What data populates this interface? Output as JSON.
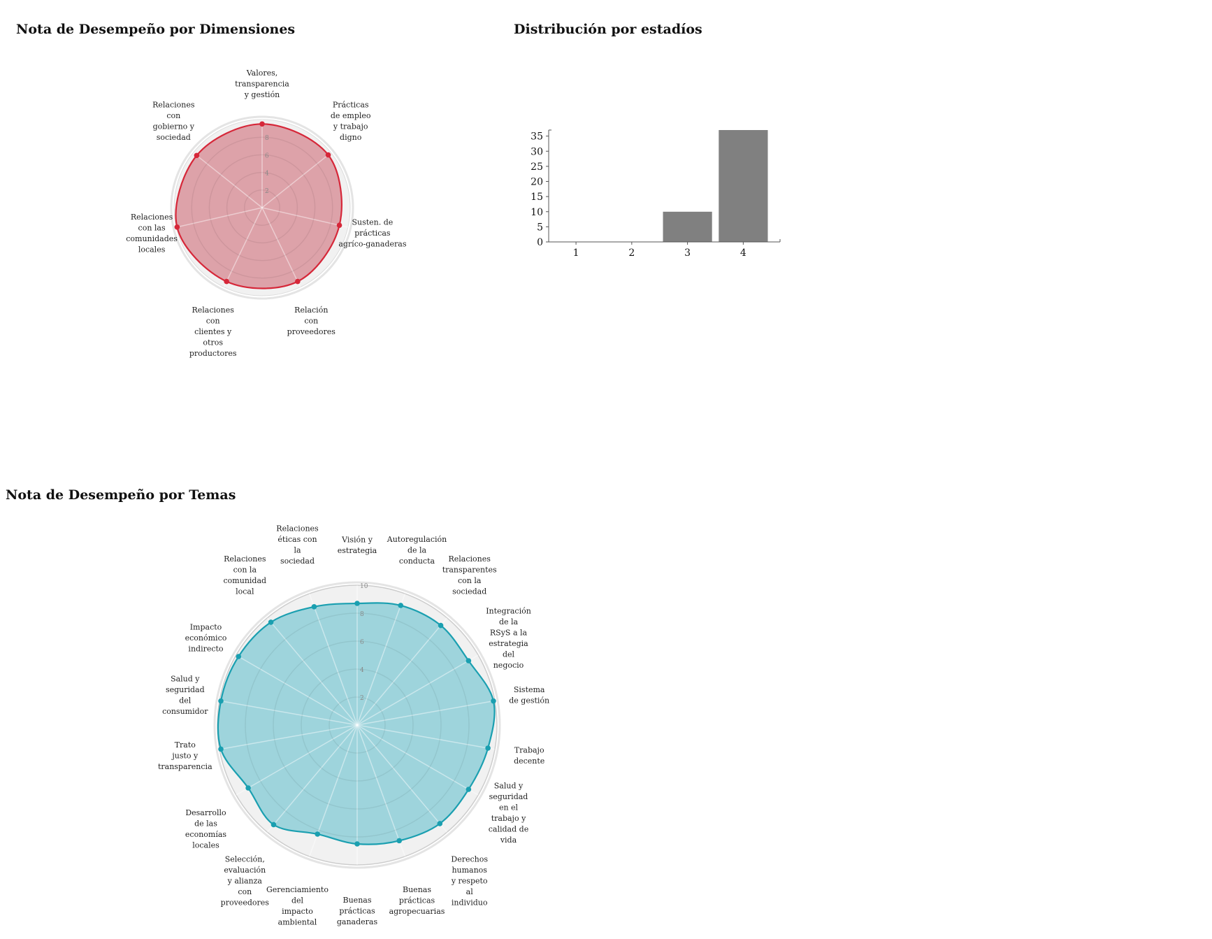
{
  "chart_data": [
    {
      "id": "dimensiones",
      "type": "radar",
      "title": "Nota de Desempeño por Dimensiones",
      "axis_max": 10,
      "ring_values": [
        2,
        4,
        6,
        8
      ],
      "ring_labels": [
        "2",
        "4",
        "6",
        "8"
      ],
      "grid": true,
      "colors": {
        "line": "#d62739",
        "fill": "#d9949c"
      },
      "categories": [
        [
          "Valores,",
          "transparencia",
          "y gestión"
        ],
        [
          "Prácticas",
          "de empleo",
          "y trabajo",
          "digno"
        ],
        [
          "Susten. de",
          "prácticas",
          "agríco-ganaderas"
        ],
        [
          "Relación",
          "con",
          "proveedores"
        ],
        [
          "Relaciones",
          "con",
          "clientes y",
          "otros",
          "productores"
        ],
        [
          "Relaciones",
          "con las",
          "comunidades",
          "locales"
        ],
        [
          "Relaciones",
          "con",
          "gobierno y",
          "sociedad"
        ]
      ],
      "values": [
        9.5,
        9.6,
        9.0,
        9.3,
        9.3,
        9.9,
        9.5
      ]
    },
    {
      "id": "estadios",
      "type": "bar",
      "title": "Distribución por estadíos",
      "categories": [
        "1",
        "2",
        "3",
        "4"
      ],
      "values": [
        0,
        0,
        10,
        37
      ],
      "ylim": [
        0,
        37
      ],
      "yticks": [
        0,
        5,
        10,
        15,
        20,
        25,
        30,
        35
      ],
      "grid": false,
      "colors": {
        "bar": "#808080",
        "axis": "#555555"
      }
    },
    {
      "id": "temas",
      "type": "radar",
      "title": "Nota de Desempeño por Temas",
      "axis_max": 10,
      "ring_values": [
        2,
        4,
        6,
        8,
        10
      ],
      "ring_labels": [
        "2",
        "4",
        "6",
        "8",
        "10"
      ],
      "grid": true,
      "colors": {
        "line": "#1a9fb0",
        "fill": "#8fcfd8"
      },
      "categories": [
        [
          "Visión y",
          "estrategia"
        ],
        [
          "Autoregulación",
          "de la",
          "conducta"
        ],
        [
          "Relaciones",
          "transparentes",
          "con la",
          "sociedad"
        ],
        [
          "Integración",
          "de la",
          "RSyS a la",
          "estrategia",
          "del",
          "negocio"
        ],
        [
          "Sistema",
          "de gestión"
        ],
        [
          "Trabajo",
          "decente"
        ],
        [
          "Salud y",
          "seguridad",
          "en el",
          "trabajo y",
          "calidad de",
          "vida"
        ],
        [
          "Derechos",
          "humanos",
          "y respeto",
          "al",
          "individuo"
        ],
        [
          "Buenas",
          "prácticas",
          "agropecuarias"
        ],
        [
          "Buenas",
          "prácticas",
          "ganaderas"
        ],
        [
          "Gerenciamiento",
          "del",
          "impacto",
          "ambiental"
        ],
        [
          "Selección,",
          "evaluación",
          "y alianza",
          "con",
          "proveedores"
        ],
        [
          "Desarrollo",
          "de las",
          "economías",
          "locales"
        ],
        [
          "Trato",
          "justo y",
          "transparencia"
        ],
        [
          "Salud y",
          "seguridad",
          "del",
          "consumidor"
        ],
        [
          "Impacto",
          "económico",
          "indirecto"
        ],
        [
          "Relaciones",
          "con la",
          "comunidad",
          "local"
        ],
        [
          "Relaciones",
          "éticas con",
          "la",
          "sociedad"
        ]
      ],
      "values": [
        8.7,
        9.1,
        9.3,
        9.2,
        9.9,
        9.5,
        9.2,
        9.2,
        8.8,
        8.5,
        8.3,
        9.3,
        9.0,
        9.9,
        9.9,
        9.8,
        9.6,
        9.0
      ]
    }
  ]
}
